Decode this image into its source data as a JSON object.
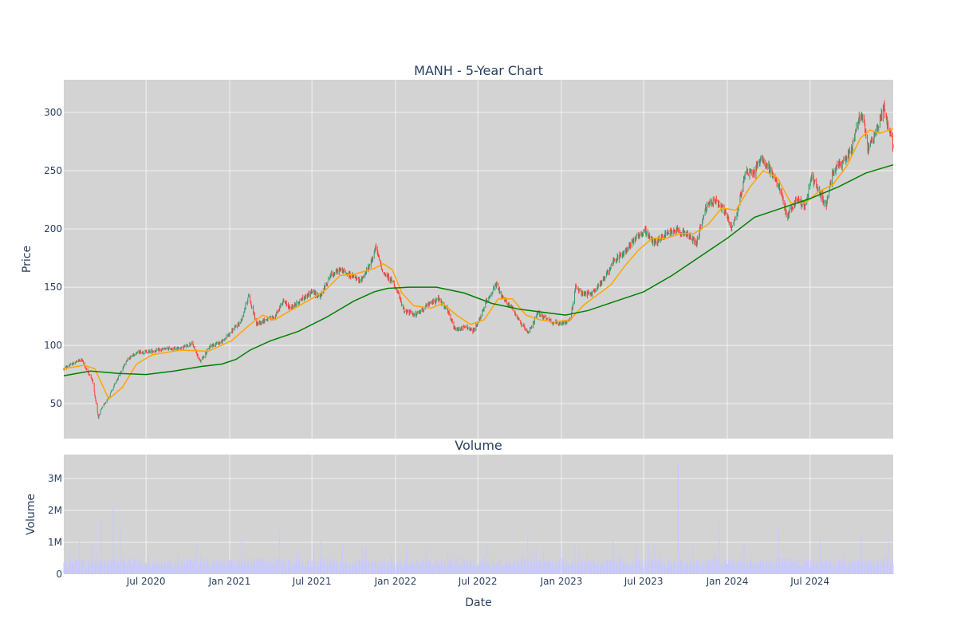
{
  "title": "MANH - 5-Year Chart",
  "colors": {
    "plot_bg": "#d3d3d3",
    "grid": "#f2f2f2",
    "increasing": "#3d9970",
    "decreasing": "#ff4136",
    "ma50": "#ffa500",
    "ma200": "#008000",
    "volume": "#c8c8ff",
    "text": "#2a3f5f"
  },
  "chart_data": [
    {
      "type": "candlestick",
      "title": "MANH - 5-Year Chart",
      "xlabel": "",
      "ylabel": "Price",
      "x_range": [
        "2020-01-02",
        "2024-12-31"
      ],
      "ylim": [
        20,
        328
      ],
      "y_ticks": [
        {
          "value": 50,
          "label": "50"
        },
        {
          "value": 100,
          "label": "100"
        },
        {
          "value": 150,
          "label": "150"
        },
        {
          "value": 200,
          "label": "200"
        },
        {
          "value": 250,
          "label": "250"
        },
        {
          "value": 300,
          "label": "300"
        }
      ],
      "grid": true,
      "price_path": [
        [
          "2020-01-02",
          80
        ],
        [
          "2020-01-20",
          84
        ],
        [
          "2020-02-10",
          88
        ],
        [
          "2020-02-20",
          80
        ],
        [
          "2020-03-05",
          70
        ],
        [
          "2020-03-18",
          38
        ],
        [
          "2020-03-24",
          45
        ],
        [
          "2020-04-10",
          56
        ],
        [
          "2020-04-30",
          72
        ],
        [
          "2020-05-20",
          88
        ],
        [
          "2020-06-10",
          94
        ],
        [
          "2020-07-15",
          95
        ],
        [
          "2020-08-15",
          97
        ],
        [
          "2020-09-20",
          98
        ],
        [
          "2020-10-10",
          102
        ],
        [
          "2020-10-28",
          86
        ],
        [
          "2020-11-20",
          100
        ],
        [
          "2020-12-15",
          103
        ],
        [
          "2021-01-05",
          112
        ],
        [
          "2021-01-25",
          120
        ],
        [
          "2021-02-12",
          143
        ],
        [
          "2021-03-01",
          118
        ],
        [
          "2021-03-20",
          122
        ],
        [
          "2021-04-10",
          124
        ],
        [
          "2021-04-28",
          138
        ],
        [
          "2021-05-15",
          132
        ],
        [
          "2021-06-10",
          140
        ],
        [
          "2021-06-30",
          146
        ],
        [
          "2021-07-20",
          142
        ],
        [
          "2021-08-10",
          160
        ],
        [
          "2021-09-01",
          165
        ],
        [
          "2021-09-25",
          160
        ],
        [
          "2021-10-15",
          155
        ],
        [
          "2021-11-05",
          168
        ],
        [
          "2021-11-18",
          184
        ],
        [
          "2021-12-05",
          162
        ],
        [
          "2021-12-28",
          154
        ],
        [
          "2022-01-20",
          130
        ],
        [
          "2022-02-15",
          126
        ],
        [
          "2022-03-10",
          134
        ],
        [
          "2022-04-05",
          140
        ],
        [
          "2022-04-25",
          130
        ],
        [
          "2022-05-12",
          113
        ],
        [
          "2022-06-05",
          116
        ],
        [
          "2022-06-20",
          112
        ],
        [
          "2022-07-05",
          122
        ],
        [
          "2022-07-20",
          138
        ],
        [
          "2022-08-10",
          152
        ],
        [
          "2022-08-25",
          140
        ],
        [
          "2022-09-15",
          132
        ],
        [
          "2022-10-05",
          118
        ],
        [
          "2022-10-20",
          110
        ],
        [
          "2022-11-10",
          128
        ],
        [
          "2022-12-01",
          122
        ],
        [
          "2022-12-28",
          118
        ],
        [
          "2023-01-20",
          122
        ],
        [
          "2023-02-01",
          150
        ],
        [
          "2023-02-15",
          144
        ],
        [
          "2023-03-10",
          145
        ],
        [
          "2023-04-01",
          155
        ],
        [
          "2023-04-25",
          172
        ],
        [
          "2023-05-20",
          180
        ],
        [
          "2023-06-10",
          192
        ],
        [
          "2023-07-05",
          198
        ],
        [
          "2023-07-25",
          188
        ],
        [
          "2023-08-20",
          196
        ],
        [
          "2023-09-10",
          200
        ],
        [
          "2023-10-01",
          196
        ],
        [
          "2023-10-25",
          188
        ],
        [
          "2023-11-15",
          218
        ],
        [
          "2023-12-05",
          225
        ],
        [
          "2023-12-28",
          214
        ],
        [
          "2024-01-10",
          200
        ],
        [
          "2024-01-25",
          218
        ],
        [
          "2024-02-10",
          250
        ],
        [
          "2024-03-01",
          248
        ],
        [
          "2024-03-15",
          262
        ],
        [
          "2024-04-05",
          250
        ],
        [
          "2024-04-28",
          232
        ],
        [
          "2024-05-12",
          210
        ],
        [
          "2024-06-01",
          225
        ],
        [
          "2024-06-20",
          220
        ],
        [
          "2024-07-05",
          245
        ],
        [
          "2024-07-20",
          232
        ],
        [
          "2024-08-05",
          220
        ],
        [
          "2024-08-20",
          250
        ],
        [
          "2024-09-10",
          256
        ],
        [
          "2024-09-30",
          268
        ],
        [
          "2024-10-15",
          292
        ],
        [
          "2024-10-25",
          300
        ],
        [
          "2024-11-05",
          268
        ],
        [
          "2024-11-25",
          285
        ],
        [
          "2024-12-10",
          305
        ],
        [
          "2024-12-31",
          270
        ]
      ],
      "series": [
        {
          "type": "line",
          "color": "#ffa500",
          "points": [
            [
              "2020-01-02",
              80
            ],
            [
              "2020-02-15",
              83
            ],
            [
              "2020-03-10",
              80
            ],
            [
              "2020-04-10",
              54
            ],
            [
              "2020-05-10",
              64
            ],
            [
              "2020-06-10",
              84
            ],
            [
              "2020-07-15",
              92
            ],
            [
              "2020-09-15",
              96
            ],
            [
              "2020-11-15",
              95
            ],
            [
              "2021-01-05",
              104
            ],
            [
              "2021-02-15",
              118
            ],
            [
              "2021-03-15",
              126
            ],
            [
              "2021-04-10",
              122
            ],
            [
              "2021-05-15",
              130
            ],
            [
              "2021-06-30",
              140
            ],
            [
              "2021-08-01",
              148
            ],
            [
              "2021-09-01",
              160
            ],
            [
              "2021-10-01",
              161
            ],
            [
              "2021-11-15",
              166
            ],
            [
              "2021-12-05",
              170
            ],
            [
              "2021-12-25",
              165
            ],
            [
              "2022-01-15",
              145
            ],
            [
              "2022-02-10",
              134
            ],
            [
              "2022-03-20",
              132
            ],
            [
              "2022-04-15",
              136
            ],
            [
              "2022-05-15",
              126
            ],
            [
              "2022-06-15",
              118
            ],
            [
              "2022-07-15",
              122
            ],
            [
              "2022-08-15",
              140
            ],
            [
              "2022-09-15",
              140
            ],
            [
              "2022-10-15",
              126
            ],
            [
              "2022-11-15",
              122
            ],
            [
              "2022-12-15",
              120
            ],
            [
              "2023-01-20",
              122
            ],
            [
              "2023-02-20",
              135
            ],
            [
              "2023-03-20",
              143
            ],
            [
              "2023-04-20",
              152
            ],
            [
              "2023-05-20",
              168
            ],
            [
              "2023-06-20",
              182
            ],
            [
              "2023-07-20",
              192
            ],
            [
              "2023-08-20",
              192
            ],
            [
              "2023-09-20",
              196
            ],
            [
              "2023-10-20",
              196
            ],
            [
              "2023-11-20",
              204
            ],
            [
              "2023-12-20",
              218
            ],
            [
              "2024-01-20",
              216
            ],
            [
              "2024-02-20",
              236
            ],
            [
              "2024-03-20",
              250
            ],
            [
              "2024-04-20",
              244
            ],
            [
              "2024-05-20",
              222
            ],
            [
              "2024-06-20",
              222
            ],
            [
              "2024-07-20",
              232
            ],
            [
              "2024-08-20",
              238
            ],
            [
              "2024-09-20",
              254
            ],
            [
              "2024-10-20",
              278
            ],
            [
              "2024-11-10",
              285
            ],
            [
              "2024-12-01",
              282
            ],
            [
              "2024-12-31",
              286
            ]
          ]
        },
        {
          "type": "line",
          "color": "#008000",
          "points": [
            [
              "2020-01-02",
              74
            ],
            [
              "2020-03-01",
              78
            ],
            [
              "2020-05-01",
              76
            ],
            [
              "2020-07-01",
              75
            ],
            [
              "2020-09-01",
              78
            ],
            [
              "2020-11-01",
              82
            ],
            [
              "2020-12-15",
              84
            ],
            [
              "2021-01-15",
              88
            ],
            [
              "2021-02-15",
              96
            ],
            [
              "2021-04-01",
              104
            ],
            [
              "2021-06-01",
              112
            ],
            [
              "2021-08-01",
              124
            ],
            [
              "2021-10-01",
              138
            ],
            [
              "2021-11-15",
              146
            ],
            [
              "2021-12-15",
              149
            ],
            [
              "2022-02-01",
              150
            ],
            [
              "2022-04-01",
              150
            ],
            [
              "2022-06-01",
              145
            ],
            [
              "2022-08-01",
              136
            ],
            [
              "2022-10-01",
              131
            ],
            [
              "2022-12-01",
              128
            ],
            [
              "2023-01-10",
              126
            ],
            [
              "2023-03-01",
              130
            ],
            [
              "2023-05-01",
              138
            ],
            [
              "2023-07-01",
              146
            ],
            [
              "2023-09-01",
              160
            ],
            [
              "2023-11-01",
              176
            ],
            [
              "2024-01-01",
              192
            ],
            [
              "2024-03-01",
              210
            ],
            [
              "2024-05-01",
              218
            ],
            [
              "2024-07-01",
              226
            ],
            [
              "2024-09-01",
              236
            ],
            [
              "2024-11-01",
              248
            ],
            [
              "2024-12-31",
              255
            ]
          ]
        }
      ]
    },
    {
      "type": "bar",
      "title": "Volume",
      "xlabel": "Date",
      "ylabel": "Volume",
      "x_range": [
        "2020-01-02",
        "2024-12-31"
      ],
      "ylim": [
        0,
        3750000
      ],
      "y_ticks": [
        {
          "value": 0,
          "label": "0"
        },
        {
          "value": 1000000,
          "label": "1M"
        },
        {
          "value": 2000000,
          "label": "2M"
        },
        {
          "value": 3000000,
          "label": "3M"
        }
      ],
      "x_ticks": [
        {
          "value": "2020-07-01",
          "label": "Jul 2020"
        },
        {
          "value": "2021-01-01",
          "label": "Jan 2021"
        },
        {
          "value": "2021-07-01",
          "label": "Jul 2021"
        },
        {
          "value": "2022-01-01",
          "label": "Jan 2022"
        },
        {
          "value": "2022-07-01",
          "label": "Jul 2022"
        },
        {
          "value": "2023-01-01",
          "label": "Jan 2023"
        },
        {
          "value": "2023-07-01",
          "label": "Jul 2023"
        },
        {
          "value": "2024-01-01",
          "label": "Jan 2024"
        },
        {
          "value": "2024-07-01",
          "label": "Jul 2024"
        }
      ],
      "grid": true,
      "baseline_volume": 350000,
      "spikes": [
        [
          "2020-02-05",
          1100000
        ],
        [
          "2020-03-05",
          1000000
        ],
        [
          "2020-03-25",
          1700000
        ],
        [
          "2020-04-20",
          2100000
        ],
        [
          "2020-05-05",
          1600000
        ],
        [
          "2020-07-25",
          1200000
        ],
        [
          "2020-10-21",
          1000000
        ],
        [
          "2021-01-27",
          1150000
        ],
        [
          "2021-04-21",
          1350000
        ],
        [
          "2021-07-21",
          1050000
        ],
        [
          "2021-10-20",
          800000
        ],
        [
          "2022-01-25",
          850000
        ],
        [
          "2022-04-26",
          650000
        ],
        [
          "2022-07-20",
          1000000
        ],
        [
          "2022-10-19",
          1350000
        ],
        [
          "2023-01-31",
          950000
        ],
        [
          "2023-04-25",
          1050000
        ],
        [
          "2023-07-25",
          1000000
        ],
        [
          "2023-09-15",
          3600000
        ],
        [
          "2023-10-18",
          850000
        ],
        [
          "2023-12-15",
          1600000
        ],
        [
          "2024-02-07",
          1000000
        ],
        [
          "2024-04-23",
          1450000
        ],
        [
          "2024-07-23",
          1150000
        ],
        [
          "2024-10-22",
          1300000
        ],
        [
          "2024-12-20",
          1150000
        ]
      ]
    }
  ]
}
